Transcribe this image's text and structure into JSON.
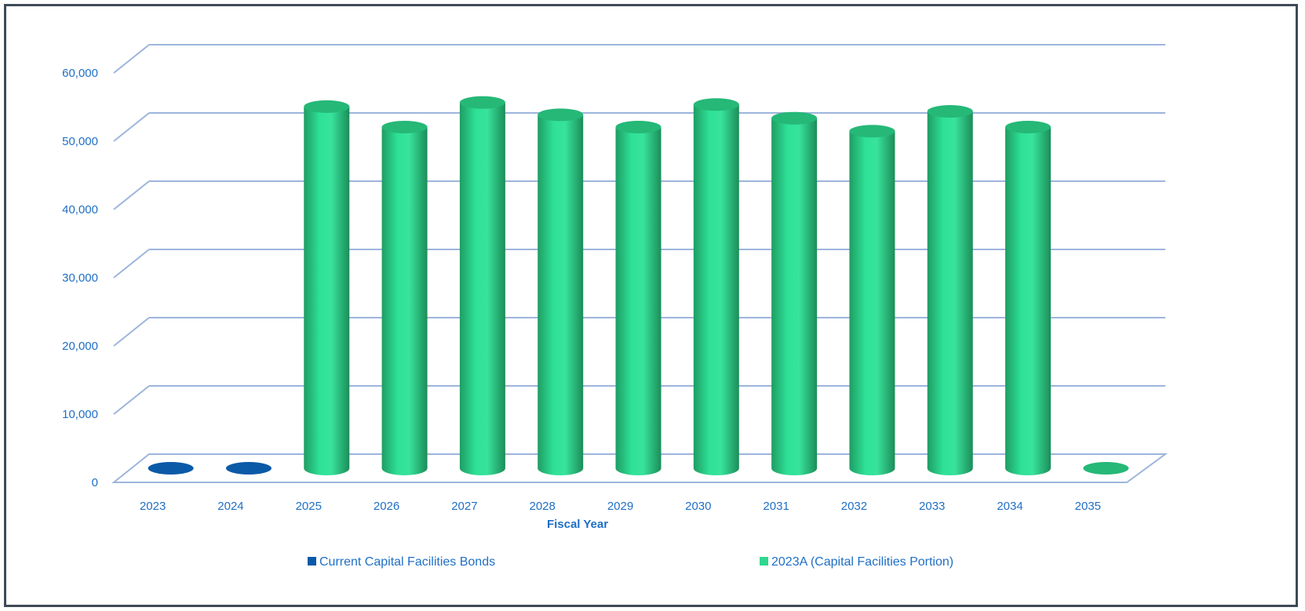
{
  "chart_data": {
    "type": "bar",
    "style": "3d-cylinder",
    "title": "",
    "xlabel": "Fiscal Year",
    "ylabel": "",
    "ylim": [
      0,
      60000
    ],
    "yticks": [
      "0",
      "10,000",
      "20,000",
      "30,000",
      "40,000",
      "50,000",
      "60,000"
    ],
    "categories": [
      "2023",
      "2024",
      "2025",
      "2026",
      "2027",
      "2028",
      "2029",
      "2030",
      "2031",
      "2032",
      "2033",
      "2034",
      "2035"
    ],
    "series": [
      {
        "name": "Current Capital Facilities Bonds",
        "color": "#0b5aa8",
        "values": [
          0,
          0,
          null,
          null,
          null,
          null,
          null,
          null,
          null,
          null,
          null,
          null,
          null
        ]
      },
      {
        "name": "2023A (Capital Facilities Portion)",
        "color": "#2fd790",
        "values": [
          null,
          null,
          53000,
          50000,
          53600,
          51800,
          50000,
          53300,
          51300,
          49400,
          52300,
          50000,
          0
        ]
      }
    ],
    "grid": true,
    "legend_position": "bottom"
  }
}
